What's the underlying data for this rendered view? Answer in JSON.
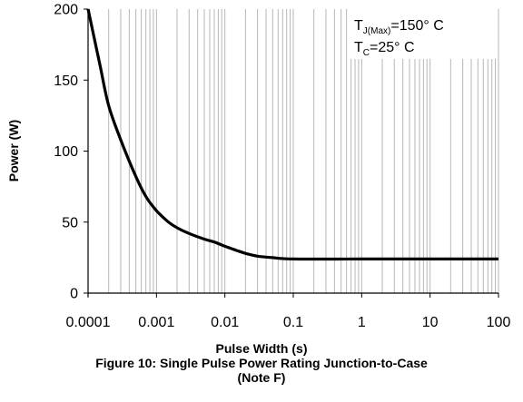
{
  "chart_data": {
    "type": "line",
    "title": "",
    "xlabel": "Pulse Width (s)",
    "ylabel": "Power (W)",
    "x_scale": "log",
    "xlim": [
      0.0001,
      100
    ],
    "ylim": [
      0,
      200
    ],
    "x_ticks": [
      "0.0001",
      "0.001",
      "0.01",
      "0.1",
      "1",
      "10",
      "100"
    ],
    "y_ticks": [
      "0",
      "50",
      "100",
      "150",
      "200"
    ],
    "grid": {
      "x_major": true,
      "x_minor": true,
      "y_major": false
    },
    "series": [
      {
        "color": "#000000",
        "points": [
          {
            "x": 0.0001,
            "y": 200
          },
          {
            "x": 0.00015,
            "y": 160
          },
          {
            "x": 0.0002,
            "y": 132
          },
          {
            "x": 0.0003,
            "y": 108
          },
          {
            "x": 0.0005,
            "y": 82
          },
          {
            "x": 0.0007,
            "y": 68
          },
          {
            "x": 0.001,
            "y": 58
          },
          {
            "x": 0.0015,
            "y": 50
          },
          {
            "x": 0.002,
            "y": 46
          },
          {
            "x": 0.003,
            "y": 42
          },
          {
            "x": 0.005,
            "y": 38
          },
          {
            "x": 0.007,
            "y": 36
          },
          {
            "x": 0.01,
            "y": 33
          },
          {
            "x": 0.015,
            "y": 30
          },
          {
            "x": 0.02,
            "y": 28
          },
          {
            "x": 0.03,
            "y": 26
          },
          {
            "x": 0.05,
            "y": 25
          },
          {
            "x": 0.1,
            "y": 24
          },
          {
            "x": 1,
            "y": 24
          },
          {
            "x": 10,
            "y": 24
          },
          {
            "x": 100,
            "y": 24
          }
        ]
      }
    ],
    "legend": {
      "placement": "top-right",
      "lines": [
        {
          "main": "T",
          "sub": "J(Max)",
          "rest": "=150° C"
        },
        {
          "main": "T",
          "sub": "C",
          "rest": "=25° C"
        }
      ]
    }
  },
  "caption": {
    "line1": "Figure 10: Single Pulse Power Rating Junction-to-Case",
    "line2": "(Note F)"
  }
}
